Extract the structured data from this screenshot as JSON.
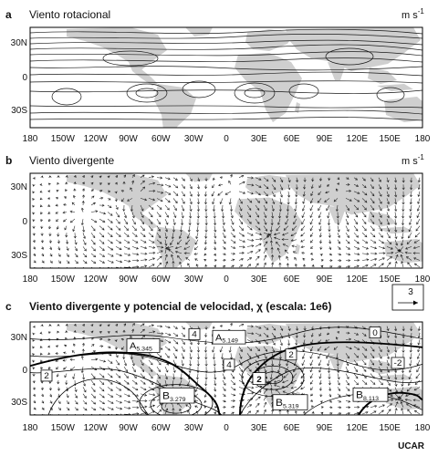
{
  "panels": [
    {
      "letter": "a",
      "title": "Viento rotacional",
      "unit": "m s",
      "unit_exp": "-1"
    },
    {
      "letter": "b",
      "title": "Viento divergente",
      "unit": "m s",
      "unit_exp": "-1"
    },
    {
      "letter": "c",
      "title": "Viento divergente y potencial de velocidad, χ (escala: 1e6)"
    }
  ],
  "lat_ticks": [
    "30N",
    "0",
    "30S"
  ],
  "lon_ticks": [
    "180",
    "150W",
    "120W",
    "90W",
    "60W",
    "30W",
    "0",
    "30E",
    "60E",
    "90E",
    "120E",
    "150E",
    "180"
  ],
  "reference_vector": "3",
  "maxima_labels": [
    {
      "letter": "A",
      "value": "5.345"
    },
    {
      "letter": "A",
      "value": "5.149"
    },
    {
      "letter": "B",
      "value": "3.279"
    },
    {
      "letter": "B",
      "value": "5.319"
    },
    {
      "letter": "B",
      "value": "8.113"
    }
  ],
  "contour_values": [
    "2",
    "4",
    "2",
    "2",
    "4",
    "0",
    "-2"
  ],
  "credit": "UCAR",
  "colors": {
    "land": "#cfcfcf",
    "lines": "#1a1a1a",
    "background": "#ffffff"
  }
}
